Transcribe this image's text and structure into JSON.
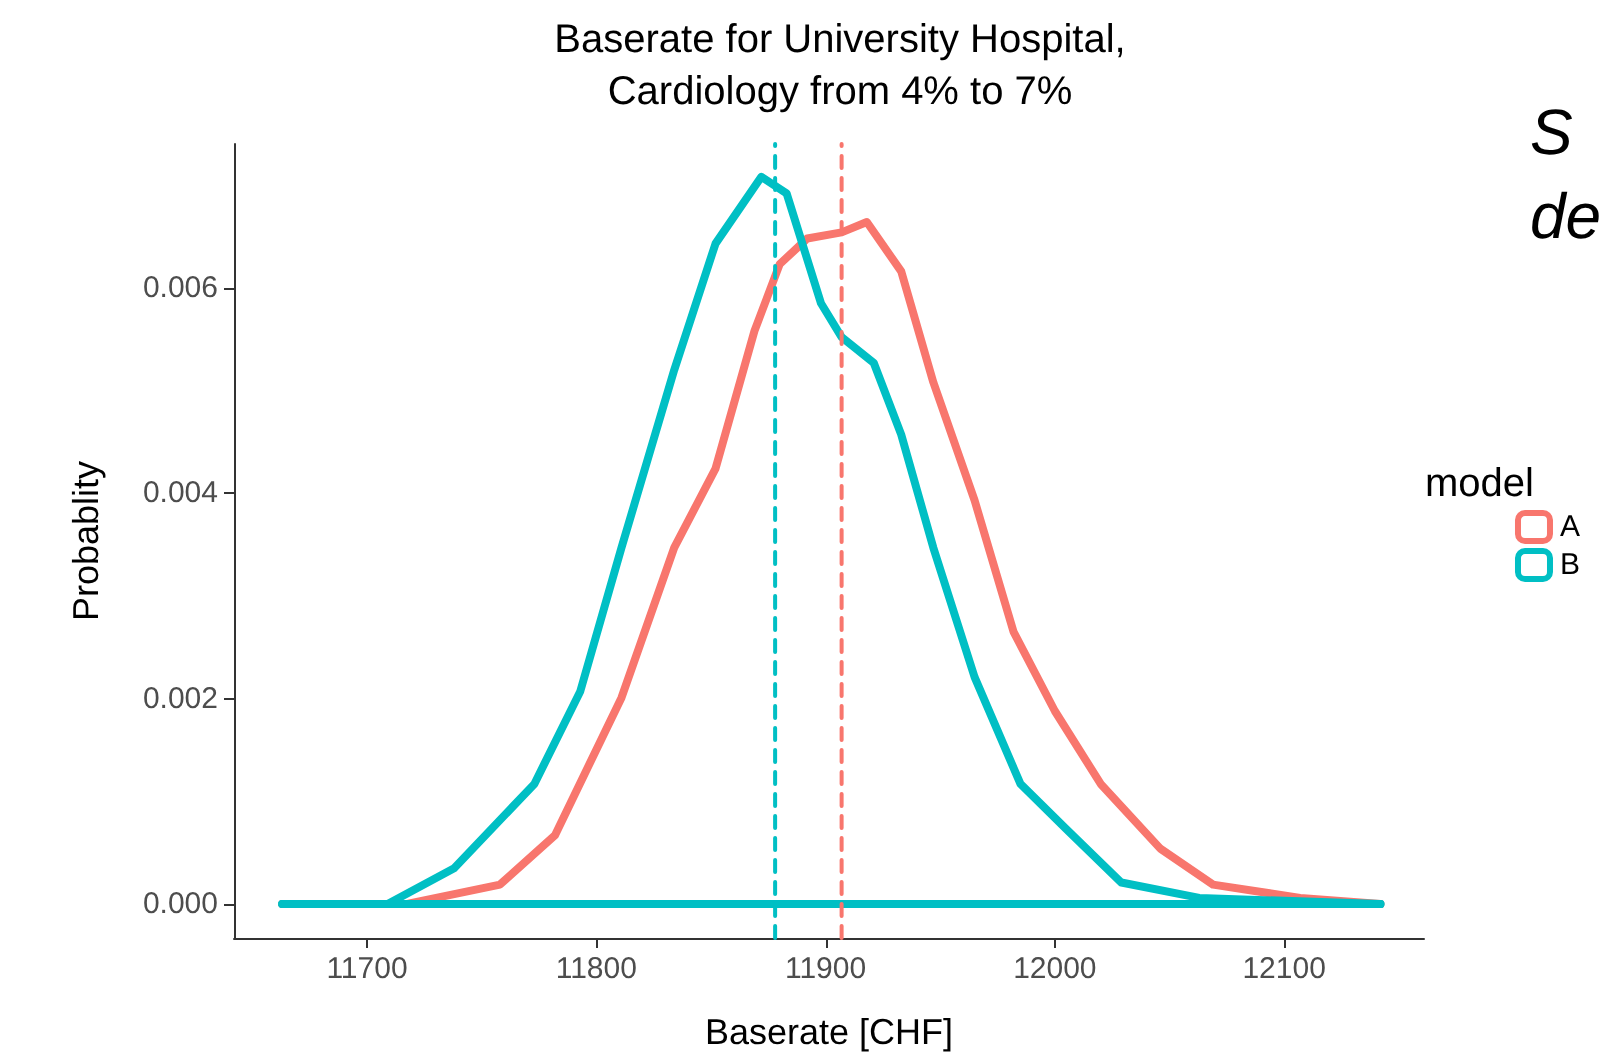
{
  "chart_data": {
    "type": "line",
    "title": "Baserate for University Hospital,\nCardiology from 4% to 7%",
    "xlabel": "Baserate [CHF]",
    "ylabel": "Probablity",
    "legend_title": "model",
    "annotations": [
      "S",
      "de"
    ],
    "xlim": [
      11642,
      12161
    ],
    "xticks": [
      11700,
      11800,
      11900,
      12000,
      12100
    ],
    "ylim": [
      -0.00033,
      0.0074
    ],
    "yticks": [
      {
        "value": 0,
        "label": "0.000"
      },
      {
        "value": 0.002,
        "label": "0.002"
      },
      {
        "value": 0.004,
        "label": "0.004"
      },
      {
        "value": 0.006,
        "label": "0.006"
      }
    ],
    "grid": false,
    "legend": "right",
    "marker": "none",
    "line_style": "solid",
    "series": [
      {
        "name": "A",
        "color": "#f8766d",
        "x": [
          11663,
          11717,
          11758,
          11782,
          11811,
          11834,
          11852,
          11869,
          11880,
          11892,
          11907,
          11918,
          11933,
          11947,
          11965,
          11982,
          12000,
          12020,
          12046,
          12069,
          12107,
          12142
        ],
        "values": [
          0,
          0,
          0.00019,
          0.00067,
          0.00201,
          0.00347,
          0.00424,
          0.00558,
          0.00623,
          0.00648,
          0.00654,
          0.00664,
          0.00616,
          0.00508,
          0.00393,
          0.00265,
          0.00188,
          0.00117,
          0.00054,
          0.00019,
          6e-05,
          0
        ]
      },
      {
        "name": "B",
        "color": "#00bfc4",
        "x": [
          11663,
          11709,
          11738,
          11773,
          11793,
          11811,
          11834,
          11852,
          11872,
          11883,
          11898,
          11907,
          11921,
          11933,
          11947,
          11965,
          11985,
          12005,
          12029,
          12063,
          12142
        ],
        "values": [
          0,
          0,
          0.00035,
          0.00117,
          0.00207,
          0.00347,
          0.0052,
          0.00643,
          0.00708,
          0.00692,
          0.00585,
          0.00552,
          0.00527,
          0.00457,
          0.00347,
          0.00221,
          0.00117,
          0.00073,
          0.00021,
          6e-05,
          0
        ]
      }
    ],
    "ref_lines": [
      {
        "axis": "y",
        "value": 0,
        "color": "#00bfc4",
        "line_style": "solid"
      },
      {
        "axis": "x",
        "value": 11907,
        "color": "#f8766d",
        "line_style": "dashed"
      },
      {
        "axis": "x",
        "value": 11878,
        "color": "#00bfc4",
        "line_style": "dashed"
      }
    ]
  }
}
